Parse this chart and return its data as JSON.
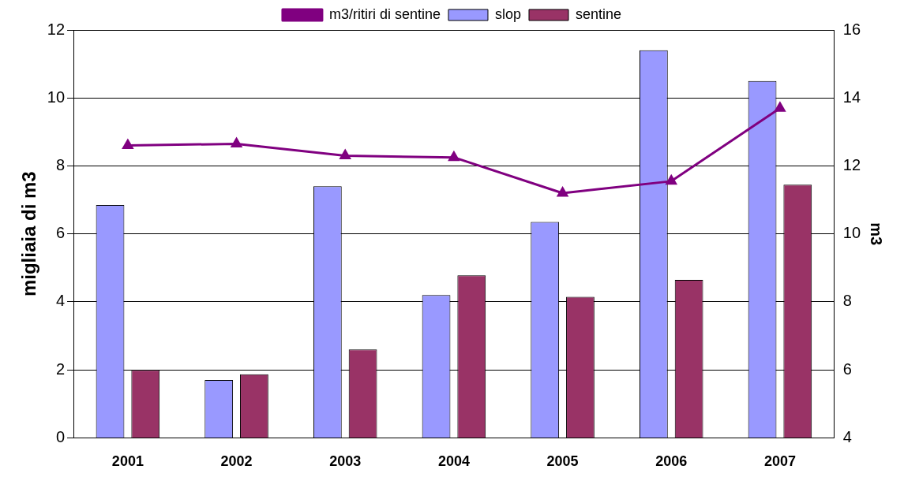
{
  "chart_data": {
    "type": "bar",
    "ylabel": "migliaia di m3",
    "y2label": "m3",
    "categories": [
      "2001",
      "2002",
      "2003",
      "2004",
      "2005",
      "2006",
      "2007"
    ],
    "series": [
      {
        "name": "slop",
        "color": "#9999ff",
        "values": [
          6.85,
          1.7,
          7.4,
          4.2,
          6.35,
          11.4,
          10.5
        ]
      },
      {
        "name": "sentine",
        "color": "#993366",
        "values": [
          2.0,
          1.87,
          2.6,
          4.78,
          4.15,
          4.65,
          7.45
        ]
      },
      {
        "name": "m3/ritiri di sentine",
        "type": "line",
        "axis": "y2",
        "color": "#800080",
        "marker": "triangle",
        "values": [
          12.6,
          12.65,
          12.3,
          12.25,
          11.2,
          11.55,
          13.7
        ]
      }
    ],
    "ylim": [
      0,
      12
    ],
    "yticks": [
      0,
      2,
      4,
      6,
      8,
      10,
      12
    ],
    "y2lim": [
      4,
      16
    ],
    "y2ticks": [
      4,
      6,
      8,
      10,
      12,
      14,
      16
    ],
    "grid": "y",
    "legend": "top"
  }
}
